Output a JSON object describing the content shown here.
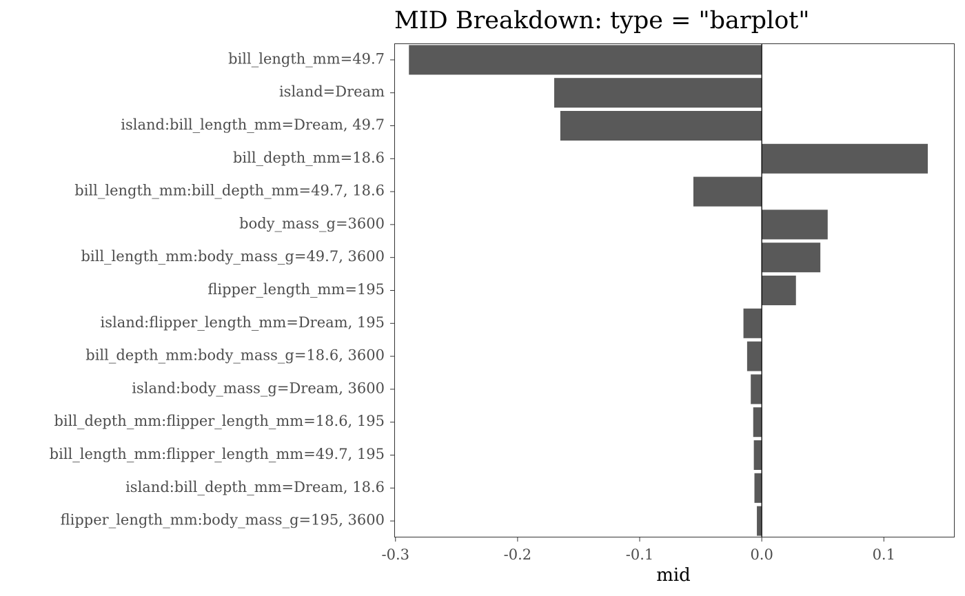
{
  "chart_data": {
    "type": "bar",
    "orientation": "horizontal",
    "title": "MID Breakdown: type = \"barplot\"",
    "xlabel": "mid",
    "ylabel": "",
    "xlim": [
      -0.301,
      0.158
    ],
    "xticks": [
      -0.3,
      -0.2,
      -0.1,
      0.0,
      0.1
    ],
    "xtick_labels": [
      "-0.3",
      "-0.2",
      "-0.1",
      "0.0",
      "0.1"
    ],
    "grid": false,
    "bar_color": "#595959",
    "zero_line_color": "#000000",
    "categories": [
      "bill_length_mm=49.7",
      "island=Dream",
      "island:bill_length_mm=Dream, 49.7",
      "bill_depth_mm=18.6",
      "bill_length_mm:bill_depth_mm=49.7, 18.6",
      "body_mass_g=3600",
      "bill_length_mm:body_mass_g=49.7, 3600",
      "flipper_length_mm=195",
      "island:flipper_length_mm=Dream, 195",
      "bill_depth_mm:body_mass_g=18.6, 3600",
      "island:body_mass_g=Dream, 3600",
      "bill_depth_mm:flipper_length_mm=18.6, 195",
      "bill_length_mm:flipper_length_mm=49.7, 195",
      "island:bill_depth_mm=Dream, 18.6",
      "flipper_length_mm:body_mass_g=195, 3600"
    ],
    "values": [
      -0.289,
      -0.17,
      -0.165,
      0.136,
      -0.056,
      0.054,
      0.048,
      0.028,
      -0.015,
      -0.012,
      -0.009,
      -0.007,
      -0.0065,
      -0.006,
      -0.004
    ]
  }
}
